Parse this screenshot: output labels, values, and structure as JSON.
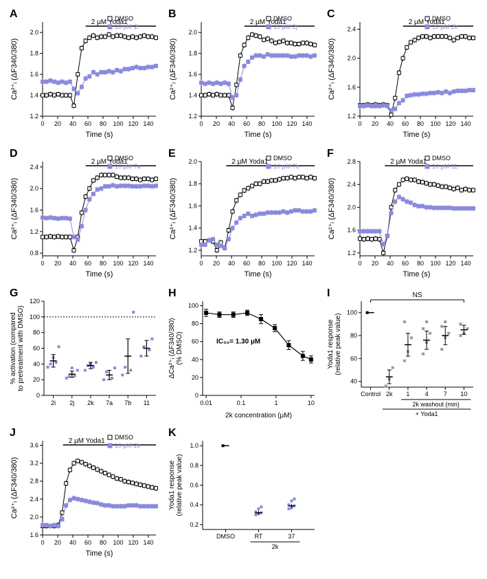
{
  "colors": {
    "dmso": "#000000",
    "compound": "#8a8add",
    "bg": "#ffffff",
    "grid": "#000000"
  },
  "time_series_panels": {
    "A": {
      "legend2": "10 µM 2i",
      "y_ticks": [
        1.2,
        1.4,
        1.6,
        1.8,
        2.0
      ],
      "ylim": [
        1.2,
        2.1
      ],
      "dmso": [
        1.4,
        1.4,
        1.41,
        1.4,
        1.41,
        1.4,
        1.4,
        1.4,
        1.3,
        1.6,
        1.85,
        1.92,
        1.95,
        1.97,
        1.95,
        1.96,
        1.96,
        1.98,
        1.96,
        1.97,
        1.97,
        1.96,
        1.95,
        1.96,
        1.95,
        1.96,
        1.97,
        1.96,
        1.96,
        1.95
      ],
      "comp": [
        1.53,
        1.53,
        1.54,
        1.53,
        1.52,
        1.53,
        1.52,
        1.53,
        1.46,
        1.42,
        1.48,
        1.56,
        1.58,
        1.62,
        1.6,
        1.62,
        1.62,
        1.63,
        1.62,
        1.64,
        1.63,
        1.65,
        1.65,
        1.66,
        1.67,
        1.66,
        1.66,
        1.67,
        1.67,
        1.68
      ]
    },
    "B": {
      "legend2": "10 µM 2j",
      "y_ticks": [
        1.2,
        1.4,
        1.6,
        1.8,
        2.0
      ],
      "ylim": [
        1.2,
        2.1
      ],
      "dmso": [
        1.4,
        1.4,
        1.41,
        1.4,
        1.41,
        1.4,
        1.4,
        1.4,
        1.28,
        1.5,
        1.78,
        1.88,
        1.95,
        1.98,
        1.97,
        1.96,
        1.93,
        1.94,
        1.92,
        1.9,
        1.91,
        1.92,
        1.9,
        1.9,
        1.89,
        1.89,
        1.9,
        1.9,
        1.89,
        1.88
      ],
      "comp": [
        1.52,
        1.51,
        1.52,
        1.51,
        1.52,
        1.51,
        1.52,
        1.51,
        1.38,
        1.4,
        1.55,
        1.68,
        1.72,
        1.76,
        1.78,
        1.78,
        1.77,
        1.79,
        1.78,
        1.78,
        1.78,
        1.78,
        1.78,
        1.77,
        1.77,
        1.78,
        1.78,
        1.78,
        1.77,
        1.78
      ]
    },
    "C": {
      "legend2": "10 µM 2k",
      "y_ticks": [
        1.2,
        1.6,
        2.0,
        2.4
      ],
      "ylim": [
        1.2,
        2.5
      ],
      "dmso": [
        1.35,
        1.35,
        1.36,
        1.35,
        1.36,
        1.35,
        1.36,
        1.35,
        1.22,
        1.45,
        1.8,
        2.0,
        2.15,
        2.22,
        2.25,
        2.28,
        2.3,
        2.3,
        2.28,
        2.3,
        2.3,
        2.3,
        2.3,
        2.28,
        2.25,
        2.28,
        2.3,
        2.3,
        2.28,
        2.28
      ],
      "comp": [
        1.34,
        1.34,
        1.35,
        1.34,
        1.34,
        1.34,
        1.35,
        1.34,
        1.28,
        1.3,
        1.38,
        1.42,
        1.48,
        1.49,
        1.5,
        1.5,
        1.51,
        1.51,
        1.52,
        1.52,
        1.53,
        1.52,
        1.54,
        1.52,
        1.54,
        1.55,
        1.55,
        1.55,
        1.56,
        1.56
      ]
    },
    "D": {
      "legend2": "10 µM 7a",
      "y_ticks": [
        0.8,
        1.2,
        1.6,
        2.0,
        2.4
      ],
      "ylim": [
        0.75,
        2.5
      ],
      "dmso": [
        1.1,
        1.1,
        1.11,
        1.1,
        1.11,
        1.1,
        1.1,
        1.1,
        0.85,
        1.1,
        1.55,
        1.85,
        2.0,
        2.15,
        2.2,
        2.25,
        2.25,
        2.25,
        2.25,
        2.22,
        2.2,
        2.2,
        2.2,
        2.18,
        2.18,
        2.16,
        2.18,
        2.18,
        2.16,
        2.18
      ],
      "comp": [
        1.46,
        1.45,
        1.46,
        1.45,
        1.44,
        1.45,
        1.45,
        1.44,
        1.1,
        1.05,
        1.3,
        1.6,
        1.8,
        1.9,
        1.98,
        2.0,
        2.04,
        2.04,
        2.06,
        2.04,
        2.05,
        2.05,
        2.05,
        2.04,
        2.04,
        2.04,
        2.05,
        2.05,
        2.04,
        2.05
      ]
    },
    "E": {
      "legend2": "10 µM 7b",
      "y_ticks": [
        1.2,
        1.4,
        1.6,
        1.8,
        2.0
      ],
      "ylim": [
        1.15,
        2.0
      ],
      "dmso": [
        1.28,
        1.28,
        1.29,
        1.28,
        1.2,
        1.27,
        1.22,
        1.38,
        1.55,
        1.65,
        1.7,
        1.74,
        1.76,
        1.78,
        1.8,
        1.8,
        1.82,
        1.82,
        1.83,
        1.83,
        1.84,
        1.85,
        1.85,
        1.86,
        1.85,
        1.86,
        1.86,
        1.85,
        1.86,
        1.85
      ],
      "comp": [
        1.25,
        1.25,
        1.29,
        1.3,
        1.25,
        1.24,
        1.22,
        1.3,
        1.4,
        1.45,
        1.49,
        1.51,
        1.53,
        1.51,
        1.52,
        1.53,
        1.53,
        1.54,
        1.54,
        1.54,
        1.54,
        1.55,
        1.54,
        1.55,
        1.56,
        1.56,
        1.55,
        1.55,
        1.55,
        1.56
      ]
    },
    "F": {
      "legend2": "10 µM 11",
      "y_ticks": [
        1.2,
        1.6,
        2.0,
        2.4,
        2.8
      ],
      "ylim": [
        1.15,
        2.8
      ],
      "dmso": [
        1.45,
        1.44,
        1.45,
        1.44,
        1.45,
        1.44,
        1.2,
        1.5,
        2.0,
        2.3,
        2.4,
        2.48,
        2.5,
        2.48,
        2.48,
        2.45,
        2.44,
        2.42,
        2.4,
        2.4,
        2.38,
        2.36,
        2.36,
        2.34,
        2.32,
        2.34,
        2.3,
        2.32,
        2.3,
        2.3
      ],
      "comp": [
        1.58,
        1.58,
        1.58,
        1.58,
        1.58,
        1.58,
        1.35,
        1.5,
        1.9,
        2.1,
        2.18,
        2.14,
        2.1,
        2.08,
        2.04,
        2.02,
        2.02,
        2.0,
        2.0,
        1.99,
        1.99,
        1.99,
        1.99,
        1.99,
        1.98,
        1.98,
        1.98,
        1.98,
        1.98,
        1.98
      ]
    },
    "J": {
      "legend2": "10 µM 2k",
      "y_ticks": [
        1.6,
        2.0,
        2.4,
        2.8,
        3.2,
        3.6
      ],
      "ylim": [
        1.6,
        3.7
      ],
      "dmso": [
        1.8,
        1.8,
        1.8,
        1.8,
        1.82,
        2.1,
        2.75,
        3.05,
        3.2,
        3.25,
        3.22,
        3.18,
        3.14,
        3.1,
        3.06,
        3.02,
        2.98,
        2.94,
        2.9,
        2.86,
        2.84,
        2.8,
        2.78,
        2.76,
        2.74,
        2.72,
        2.7,
        2.68,
        2.66,
        2.64
      ],
      "comp": [
        1.82,
        1.82,
        1.8,
        1.82,
        1.8,
        1.95,
        2.26,
        2.38,
        2.42,
        2.4,
        2.38,
        2.36,
        2.34,
        2.32,
        2.31,
        2.28,
        2.26,
        2.26,
        2.24,
        2.24,
        2.24,
        2.24,
        2.26,
        2.26,
        2.26,
        2.24,
        2.24,
        2.24,
        2.24,
        2.24
      ]
    }
  },
  "panel_G": {
    "categories": [
      "2i",
      "2j",
      "2k",
      "7a",
      "7b",
      "11"
    ],
    "y_ticks": [
      0,
      20,
      40,
      60,
      80,
      100,
      120
    ],
    "ylim": [
      0,
      120
    ],
    "means": [
      44,
      27,
      38,
      26,
      50,
      60
    ],
    "err": [
      8,
      4,
      4,
      6,
      22,
      10
    ],
    "points": {
      "2i": [
        36,
        42,
        40,
        62,
        48
      ],
      "2j": [
        22,
        25,
        24,
        32,
        35
      ],
      "2k": [
        32,
        36,
        38,
        42,
        40
      ],
      "7a": [
        20,
        22,
        30,
        35
      ],
      "7b": [
        26,
        32,
        36,
        106
      ],
      "11": [
        50,
        58,
        62,
        72
      ]
    },
    "ylabel": "% activation (compared\nto pretreatment with DMSO)"
  },
  "panel_H": {
    "x_log_ticks": [
      0.01,
      0.1,
      1,
      10
    ],
    "y_ticks": [
      0,
      20,
      40,
      60,
      80,
      100
    ],
    "ylim": [
      0,
      105
    ],
    "xlim_log": [
      -2.1,
      1.1
    ],
    "ic50_label": "IC₅₀= 1.30 µM",
    "x": [
      0.01,
      0.024,
      0.06,
      0.15,
      0.37,
      0.92,
      2.3,
      5.8,
      10
    ],
    "y": [
      92,
      90,
      90,
      92,
      85,
      75,
      56,
      44,
      40
    ],
    "err": [
      4,
      3,
      3,
      3,
      5,
      4,
      5,
      5,
      4
    ],
    "ylabel": "ΔCa²⁺ᵢ (ΔF340/380)\n(% DMSO)",
    "xlabel": "2k concentration (µM)"
  },
  "panel_I": {
    "x_groups": [
      "Control",
      "2k",
      "1",
      "4",
      "7",
      "10"
    ],
    "y_ticks": [
      40,
      60,
      80,
      100
    ],
    "ylim": [
      35,
      110
    ],
    "means": [
      100,
      44,
      72,
      76,
      80,
      85
    ],
    "err": [
      0,
      6,
      10,
      8,
      8,
      4
    ],
    "ns_label": "NS",
    "sub_label1": "2k washout (min)",
    "sub_label2": "+ Yoda1",
    "ylabel": "Yoda1 response\n(relative peak value)",
    "points": {
      "Control": [
        100
      ],
      "2k": [
        36,
        42,
        52
      ],
      "1": [
        58,
        66,
        78,
        92
      ],
      "4": [
        64,
        74,
        82,
        86,
        92
      ],
      "7": [
        68,
        78,
        82,
        88,
        92
      ],
      "10": [
        80,
        82,
        86,
        90
      ]
    }
  },
  "panel_K": {
    "x_groups": [
      "DMSO",
      "RT",
      "37"
    ],
    "y_ticks": [
      0.2,
      0.4,
      0.6,
      0.8,
      1.0
    ],
    "ylim": [
      0.15,
      1.05
    ],
    "means": [
      1.0,
      0.32,
      0.39
    ],
    "err": [
      0,
      0.02,
      0.02
    ],
    "sub_label": "2k",
    "ylabel": "Yoda1 response\n(relative peak value)",
    "points": {
      "DMSO": [
        1.0
      ],
      "RT": [
        0.3,
        0.31,
        0.32,
        0.33,
        0.36,
        0.38
      ],
      "37": [
        0.36,
        0.37,
        0.39,
        0.4,
        0.44,
        0.46
      ]
    }
  },
  "labels": {
    "yoda_bar": "2 µM Yoda1",
    "time_x": "Time (s)",
    "ca_y": "Ca²⁺ᵢ (ΔF340/380)",
    "dmso_legend": "DMSO"
  },
  "x_ticks_time": [
    0,
    20,
    40,
    60,
    80,
    100,
    120,
    140
  ],
  "x_range_time": [
    0,
    150
  ],
  "marker_size": 3,
  "line_width": 1,
  "error_cap": 2,
  "fontsize": {
    "axis": 11,
    "tick": 9,
    "legend": 9,
    "annotation": 10,
    "panel": 16
  }
}
